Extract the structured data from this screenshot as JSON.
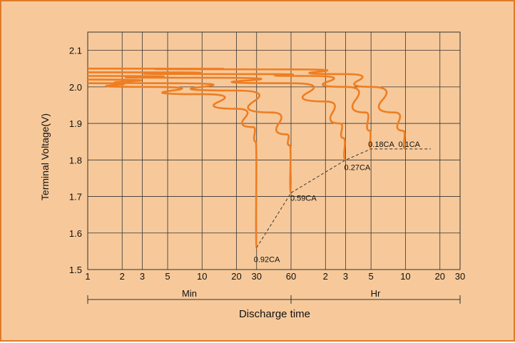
{
  "chart_data": {
    "type": "line",
    "title": "",
    "ylabel": "Terminal Voltage(V)",
    "xlabel": "Discharge time",
    "ylim": [
      1.5,
      2.15
    ],
    "y_ticks": [
      1.5,
      1.6,
      1.7,
      1.8,
      1.9,
      2.0,
      2.1
    ],
    "y_tick_labels": [
      "1.5",
      "1.6",
      "1.7",
      "1.8",
      "1.9",
      "2.0",
      "2.1"
    ],
    "x_scale": "log (minutes, then hours)",
    "x_ticks": [
      {
        "label": "1"
      },
      {
        "label": "2"
      },
      {
        "label": "3"
      },
      {
        "label": "5"
      },
      {
        "label": "10"
      },
      {
        "label": "20"
      },
      {
        "label": "30"
      },
      {
        "label": "60"
      },
      {
        "label": "2"
      },
      {
        "label": "3"
      },
      {
        "label": "5"
      },
      {
        "label": "10"
      },
      {
        "label": "20"
      },
      {
        "label": "30"
      }
    ],
    "x_segments": [
      {
        "label": "Min",
        "from_minutes": 1,
        "to_minutes": 60
      },
      {
        "label": "Hr",
        "from_minutes": 60,
        "to_minutes": 1800
      }
    ],
    "grid": true,
    "series": [
      {
        "name": "0.92CA",
        "end_minutes": 30,
        "end_voltage": 1.56,
        "points": [
          [
            1,
            2.01
          ],
          [
            3,
            2.0
          ],
          [
            10,
            1.98
          ],
          [
            20,
            1.94
          ],
          [
            28,
            1.89
          ],
          [
            29.5,
            1.85
          ],
          [
            30,
            1.56
          ]
        ]
      },
      {
        "name": "0.59CA",
        "end_minutes": 60,
        "end_voltage": 1.71,
        "points": [
          [
            1,
            2.02
          ],
          [
            5,
            2.01
          ],
          [
            20,
            1.99
          ],
          [
            40,
            1.93
          ],
          [
            55,
            1.87
          ],
          [
            58.5,
            1.84
          ],
          [
            60,
            1.71
          ]
        ]
      },
      {
        "name": "0.27CA",
        "end_minutes": 180,
        "end_voltage": 1.8,
        "points": [
          [
            1,
            2.03
          ],
          [
            10,
            2.025
          ],
          [
            60,
            2.01
          ],
          [
            120,
            1.96
          ],
          [
            160,
            1.9
          ],
          [
            172,
            1.86
          ],
          [
            180,
            1.8
          ]
        ]
      },
      {
        "name": "0.18CA",
        "end_minutes": 300,
        "end_voltage": 1.83,
        "points": [
          [
            1,
            2.04
          ],
          [
            30,
            2.035
          ],
          [
            90,
            2.03
          ],
          [
            180,
            2.0
          ],
          [
            270,
            1.93
          ],
          [
            292,
            1.88
          ],
          [
            300,
            1.83
          ]
        ]
      },
      {
        "name": "0.1CA",
        "end_minutes": 600,
        "end_voltage": 1.83,
        "points": [
          [
            1,
            2.05
          ],
          [
            60,
            2.048
          ],
          [
            180,
            2.035
          ],
          [
            300,
            2.0
          ],
          [
            480,
            1.93
          ],
          [
            570,
            1.88
          ],
          [
            600,
            1.83
          ]
        ]
      }
    ],
    "cutoff_line": {
      "style": "dashed",
      "points": [
        [
          30,
          1.56
        ],
        [
          60,
          1.71
        ],
        [
          180,
          1.8
        ],
        [
          300,
          1.83
        ],
        [
          600,
          1.83
        ],
        [
          1000,
          1.83
        ]
      ]
    },
    "colors": {
      "background": "#f7c99a",
      "border": "#e07a2a",
      "series": "#ee7d22",
      "grid": "#333333"
    }
  }
}
